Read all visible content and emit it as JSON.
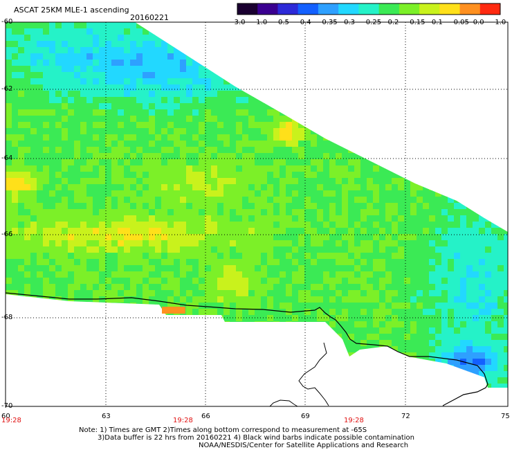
{
  "header": {
    "title": "ASCAT 25KM MLE-1 ascending",
    "date": "20160221"
  },
  "colorbar": {
    "labels": [
      "-3.0",
      "-1.0",
      "-0.5",
      "-0.4",
      "-0.35",
      "-0.3",
      "-0.25",
      "-0.2",
      "-0.15",
      "-0.1",
      "-0.05",
      "0.0",
      "1.0"
    ],
    "colors": [
      "#1a0030",
      "#3a0090",
      "#2d2ad8",
      "#1360ff",
      "#2ea0ff",
      "#22d8ff",
      "#25f2c8",
      "#3bea55",
      "#7cf028",
      "#c9f21c",
      "#ffe01a",
      "#ff9020",
      "#ff2a10"
    ]
  },
  "axes": {
    "lat_labels": [
      "-60",
      "-62",
      "-64",
      "-66",
      "-68",
      "-70"
    ],
    "lon_labels": [
      "60",
      "63",
      "66",
      "69",
      "72",
      "75"
    ],
    "time_labels": [
      "19:28",
      "19:28",
      "19:28"
    ]
  },
  "notes": {
    "line1": "Note: 1) Times are GMT 2)Times along bottom correspond to measurement at -65S",
    "line2": "3)Data buffer is 22 hrs from 20160221 4) Black wind barbs indicate possible contamination",
    "line3": "NOAA/NESDIS/Center for Satellite Applications and Research"
  }
}
